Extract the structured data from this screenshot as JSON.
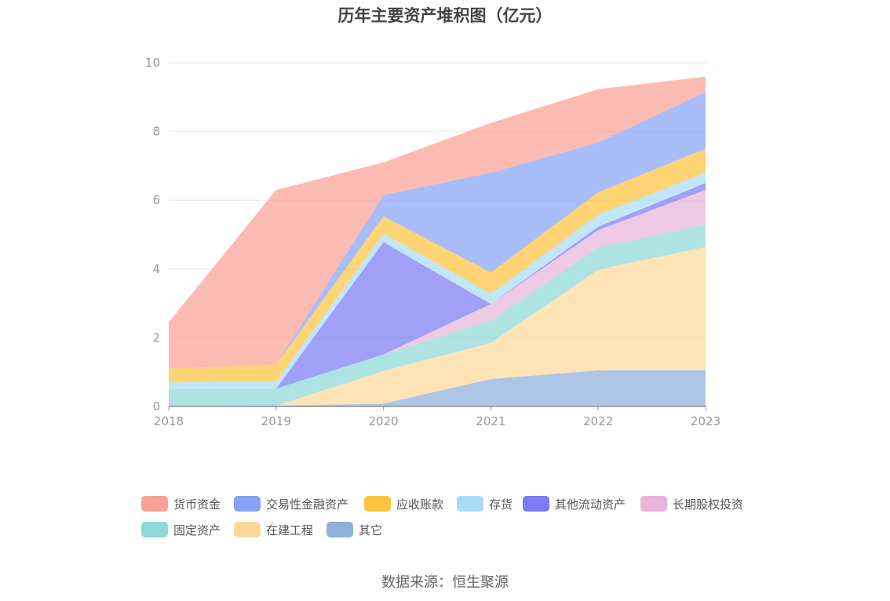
{
  "chart_data": {
    "type": "area",
    "stacked": true,
    "title": "历年主要资产堆积图（亿元）",
    "xlabel": "",
    "ylabel": "",
    "categories": [
      "2018",
      "2019",
      "2020",
      "2021",
      "2022",
      "2023"
    ],
    "ylim": [
      0,
      10
    ],
    "yticks": [
      0,
      2,
      4,
      6,
      8,
      10
    ],
    "grid": true,
    "legend_position": "bottom",
    "series": [
      {
        "name": "其它",
        "color": "#8fb0db",
        "values": [
          0.0,
          0.02,
          0.08,
          0.8,
          1.05,
          1.05
        ]
      },
      {
        "name": "在建工程",
        "color": "#fdd89a",
        "values": [
          0.0,
          0.0,
          0.95,
          1.05,
          2.93,
          3.59
        ]
      },
      {
        "name": "固定资产",
        "color": "#8dd8d8",
        "values": [
          0.52,
          0.5,
          0.48,
          0.65,
          0.65,
          0.66
        ]
      },
      {
        "name": "长期股权投资",
        "color": "#e8b4d8",
        "values": [
          0.0,
          0.0,
          0.0,
          0.48,
          0.5,
          1.0
        ]
      },
      {
        "name": "其他流动资产",
        "color": "#7b7cf2",
        "values": [
          0.0,
          0.0,
          3.27,
          0.0,
          0.1,
          0.2
        ]
      },
      {
        "name": "存货",
        "color": "#a8dcf5",
        "values": [
          0.18,
          0.2,
          0.25,
          0.3,
          0.35,
          0.3
        ]
      },
      {
        "name": "应收账款",
        "color": "#fdc43f",
        "values": [
          0.4,
          0.5,
          0.5,
          0.62,
          0.65,
          0.7
        ]
      },
      {
        "name": "交易性金融资产",
        "color": "#86a4f6",
        "values": [
          0.0,
          0.0,
          0.62,
          2.9,
          1.45,
          1.65
        ]
      },
      {
        "name": "货币资金",
        "color": "#f9a196",
        "values": [
          1.35,
          5.08,
          0.95,
          1.45,
          1.55,
          0.45
        ]
      }
    ],
    "legend_order": [
      "货币资金",
      "交易性金融资产",
      "应收账款",
      "存货",
      "其他流动资产",
      "长期股权投资",
      "固定资产",
      "在建工程",
      "其它"
    ]
  },
  "source_text": "数据来源：恒生聚源"
}
